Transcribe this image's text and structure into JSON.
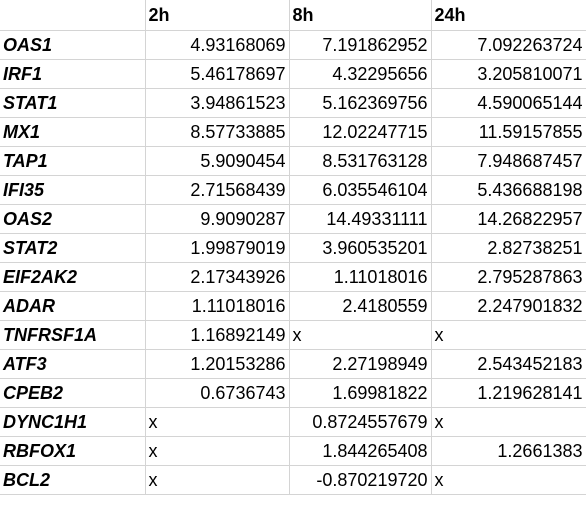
{
  "headers": [
    "",
    "2h",
    "8h",
    "24h"
  ],
  "rows": [
    {
      "gene": "OAS1",
      "h2": "4.93168069",
      "h8": "7.191862952",
      "h24": "7.092263724"
    },
    {
      "gene": "IRF1",
      "h2": "5.46178697",
      "h8": "4.32295656",
      "h24": "3.205810071"
    },
    {
      "gene": "STAT1",
      "h2": "3.94861523",
      "h8": "5.162369756",
      "h24": "4.590065144"
    },
    {
      "gene": "MX1",
      "h2": "8.57733885",
      "h8": "12.02247715",
      "h24": "11.59157855"
    },
    {
      "gene": "TAP1",
      "h2": "5.9090454",
      "h8": "8.531763128",
      "h24": "7.948687457"
    },
    {
      "gene": "IFI35",
      "h2": "2.71568439",
      "h8": "6.035546104",
      "h24": "5.436688198"
    },
    {
      "gene": "OAS2",
      "h2": "9.9090287",
      "h8": "14.49331111",
      "h24": "14.26822957"
    },
    {
      "gene": "STAT2",
      "h2": "1.99879019",
      "h8": "3.960535201",
      "h24": "2.82738251"
    },
    {
      "gene": "EIF2AK2",
      "h2": "2.17343926",
      "h8": "1.11018016",
      "h24": "2.795287863"
    },
    {
      "gene": "ADAR",
      "h2": "1.11018016",
      "h8": "2.4180559",
      "h24": "2.247901832"
    },
    {
      "gene": "TNFRSF1A",
      "h2": "1.16892149",
      "h8": "x",
      "h24": "x"
    },
    {
      "gene": "ATF3",
      "h2": "1.20153286",
      "h8": "2.27198949",
      "h24": "2.543452183"
    },
    {
      "gene": "CPEB2",
      "h2": "0.6736743",
      "h8": "1.69981822",
      "h24": "1.219628141"
    },
    {
      "gene": "DYNC1H1",
      "h2": "x",
      "h8": "0.8724557679",
      "h24": "x"
    },
    {
      "gene": "RBFOX1",
      "h2": "x",
      "h8": "1.844265408",
      "h24": "1.2661383"
    },
    {
      "gene": "BCL2",
      "h2": "x",
      "h8": "-0.870219720",
      "h24": "x"
    }
  ]
}
